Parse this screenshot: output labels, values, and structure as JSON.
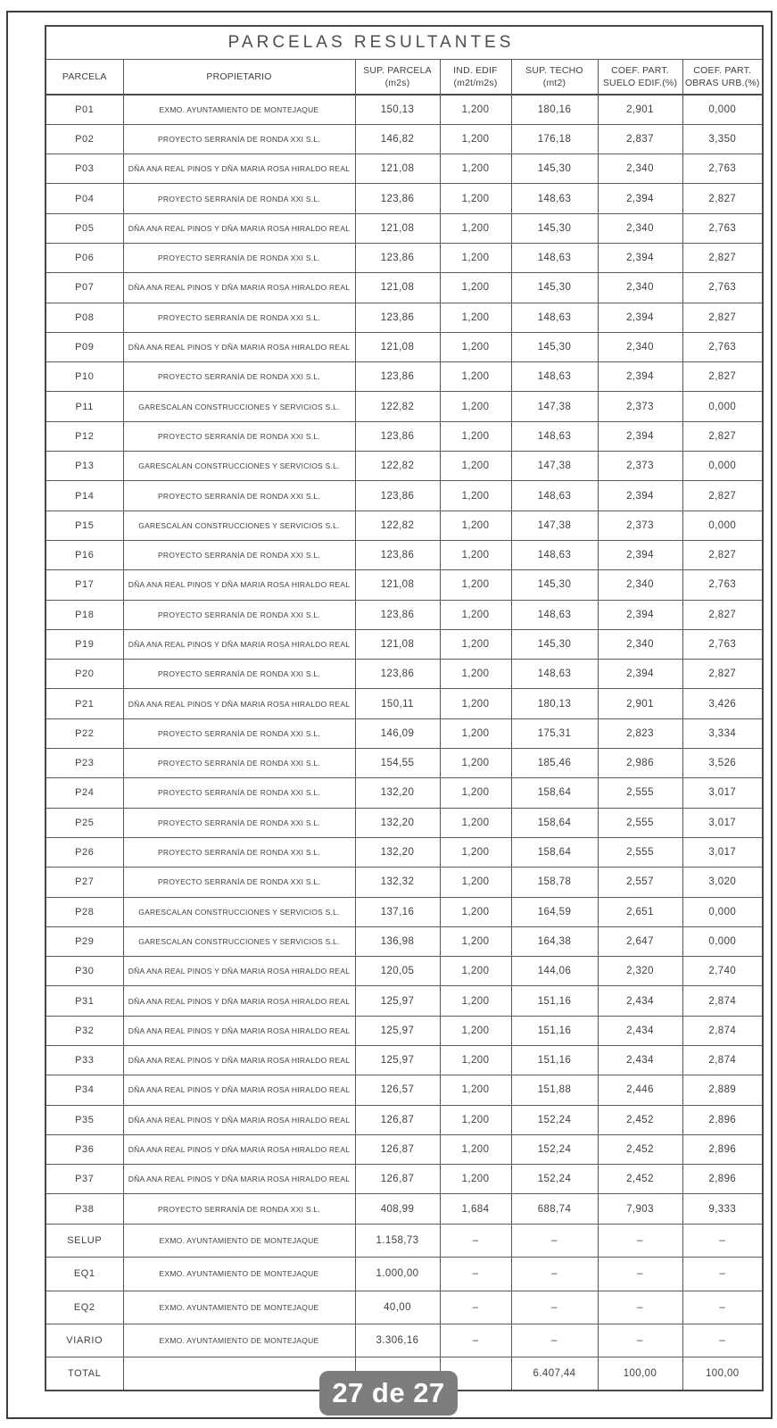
{
  "document": {
    "title": "PARCELAS RESULTANTES"
  },
  "page_indicator": {
    "label": "27 de 27",
    "bg_color": "#7d7d7d",
    "text_color": "#ffffff"
  },
  "colors": {
    "grid_line": "#5a5a5a",
    "frame": "#3d3d3d",
    "text": "#3f3f3f"
  },
  "table": {
    "headers": [
      {
        "line1": "PARCELA",
        "line2": ""
      },
      {
        "line1": "PROPIETARIO",
        "line2": ""
      },
      {
        "line1": "SUP. PARCELA",
        "line2": "(m2s)"
      },
      {
        "line1": "IND. EDIF",
        "line2": "(m2t/m2s)"
      },
      {
        "line1": "SUP. TECHO",
        "line2": "(mt2)"
      },
      {
        "line1": "COEF. PART.",
        "line2": "SUELO EDIF.(%)"
      },
      {
        "line1": "COEF. PART.",
        "line2": "OBRAS URB.(%)"
      }
    ],
    "rows": [
      [
        "P01",
        "EXMO. AYUNTAMIENTO DE MONTEJAQUE",
        "150,13",
        "1,200",
        "180,16",
        "2,901",
        "0,000"
      ],
      [
        "P02",
        "PROYECTO SERRANÍA DE RONDA XXI S.L.",
        "146,82",
        "1,200",
        "176,18",
        "2,837",
        "3,350"
      ],
      [
        "P03",
        "DÑA ANA REAL PINOS Y DÑA MARIA ROSA HIRALDO REAL",
        "121,08",
        "1,200",
        "145,30",
        "2,340",
        "2,763"
      ],
      [
        "P04",
        "PROYECTO SERRANÍA DE RONDA XXI S.L.",
        "123,86",
        "1,200",
        "148,63",
        "2,394",
        "2,827"
      ],
      [
        "P05",
        "DÑA ANA REAL PINOS Y DÑA MARIA ROSA HIRALDO REAL",
        "121,08",
        "1,200",
        "145,30",
        "2,340",
        "2,763"
      ],
      [
        "P06",
        "PROYECTO SERRANÍA DE RONDA XXI S.L.",
        "123,86",
        "1,200",
        "148,63",
        "2,394",
        "2,827"
      ],
      [
        "P07",
        "DÑA ANA REAL PINOS Y DÑA MARIA ROSA HIRALDO REAL",
        "121,08",
        "1,200",
        "145,30",
        "2,340",
        "2,763"
      ],
      [
        "P08",
        "PROYECTO SERRANÍA DE RONDA XXI S.L.",
        "123,86",
        "1,200",
        "148,63",
        "2,394",
        "2,827"
      ],
      [
        "P09",
        "DÑA ANA REAL PINOS Y DÑA MARIA ROSA HIRALDO REAL",
        "121,08",
        "1,200",
        "145,30",
        "2,340",
        "2,763"
      ],
      [
        "P10",
        "PROYECTO SERRANÍA DE RONDA XXI S.L.",
        "123,86",
        "1,200",
        "148,63",
        "2,394",
        "2,827"
      ],
      [
        "P11",
        "GARESCALAN CONSTRUCCIONES Y SERVICIOS S.L.",
        "122,82",
        "1,200",
        "147,38",
        "2,373",
        "0,000"
      ],
      [
        "P12",
        "PROYECTO SERRANÍA DE RONDA XXI S.L.",
        "123,86",
        "1,200",
        "148,63",
        "2,394",
        "2,827"
      ],
      [
        "P13",
        "GARESCALAN CONSTRUCCIONES Y SERVICIOS S.L.",
        "122,82",
        "1,200",
        "147,38",
        "2,373",
        "0,000"
      ],
      [
        "P14",
        "PROYECTO SERRANÍA DE RONDA XXI S.L.",
        "123,86",
        "1,200",
        "148,63",
        "2,394",
        "2,827"
      ],
      [
        "P15",
        "GARESCALAN CONSTRUCCIONES Y SERVICIOS S.L.",
        "122,82",
        "1,200",
        "147,38",
        "2,373",
        "0,000"
      ],
      [
        "P16",
        "PROYECTO SERRANÍA DE RONDA XXI S.L.",
        "123,86",
        "1,200",
        "148,63",
        "2,394",
        "2,827"
      ],
      [
        "P17",
        "DÑA ANA REAL PINOS Y DÑA MARIA ROSA HIRALDO REAL",
        "121,08",
        "1,200",
        "145,30",
        "2,340",
        "2,763"
      ],
      [
        "P18",
        "PROYECTO SERRANÍA DE RONDA XXI S.L.",
        "123,86",
        "1,200",
        "148,63",
        "2,394",
        "2,827"
      ],
      [
        "P19",
        "DÑA ANA REAL PINOS Y DÑA MARIA ROSA HIRALDO REAL",
        "121,08",
        "1,200",
        "145,30",
        "2,340",
        "2,763"
      ],
      [
        "P20",
        "PROYECTO SERRANÍA DE RONDA XXI S.L.",
        "123,86",
        "1,200",
        "148,63",
        "2,394",
        "2,827"
      ],
      [
        "P21",
        "DÑA ANA REAL PINOS Y DÑA MARIA ROSA HIRALDO REAL",
        "150,11",
        "1,200",
        "180,13",
        "2,901",
        "3,426"
      ],
      [
        "P22",
        "PROYECTO SERRANÍA DE RONDA XXI S.L.",
        "146,09",
        "1,200",
        "175,31",
        "2,823",
        "3,334"
      ],
      [
        "P23",
        "PROYECTO SERRANÍA DE RONDA XXI S.L.",
        "154,55",
        "1,200",
        "185,46",
        "2,986",
        "3,526"
      ],
      [
        "P24",
        "PROYECTO SERRANÍA DE RONDA XXI S.L.",
        "132,20",
        "1,200",
        "158,64",
        "2,555",
        "3,017"
      ],
      [
        "P25",
        "PROYECTO SERRANÍA DE RONDA XXI S.L.",
        "132,20",
        "1,200",
        "158,64",
        "2,555",
        "3,017"
      ],
      [
        "P26",
        "PROYECTO SERRANÍA DE RONDA XXI S.L.",
        "132,20",
        "1,200",
        "158,64",
        "2,555",
        "3,017"
      ],
      [
        "P27",
        "PROYECTO SERRANÍA DE RONDA XXI S.L.",
        "132,32",
        "1,200",
        "158,78",
        "2,557",
        "3,020"
      ],
      [
        "P28",
        "GARESCALAN CONSTRUCCIONES Y SERVICIOS S.L.",
        "137,16",
        "1,200",
        "164,59",
        "2,651",
        "0,000"
      ],
      [
        "P29",
        "GARESCALAN CONSTRUCCIONES Y SERVICIOS S.L.",
        "136,98",
        "1,200",
        "164,38",
        "2,647",
        "0,000"
      ],
      [
        "P30",
        "DÑA ANA REAL PINOS Y DÑA MARIA ROSA HIRALDO REAL",
        "120,05",
        "1,200",
        "144,06",
        "2,320",
        "2,740"
      ],
      [
        "P31",
        "DÑA ANA REAL PINOS Y DÑA MARIA ROSA HIRALDO REAL",
        "125,97",
        "1,200",
        "151,16",
        "2,434",
        "2,874"
      ],
      [
        "P32",
        "DÑA ANA REAL PINOS Y DÑA MARIA ROSA HIRALDO REAL",
        "125,97",
        "1,200",
        "151,16",
        "2,434",
        "2,874"
      ],
      [
        "P33",
        "DÑA ANA REAL PINOS Y DÑA MARIA ROSA HIRALDO REAL",
        "125,97",
        "1,200",
        "151,16",
        "2,434",
        "2,874"
      ],
      [
        "P34",
        "DÑA ANA REAL PINOS Y DÑA MARIA ROSA HIRALDO REAL",
        "126,57",
        "1,200",
        "151,88",
        "2,446",
        "2,889"
      ],
      [
        "P35",
        "DÑA ANA REAL PINOS Y DÑA MARIA ROSA HIRALDO REAL",
        "126,87",
        "1,200",
        "152,24",
        "2,452",
        "2,896"
      ],
      [
        "P36",
        "DÑA ANA REAL PINOS Y DÑA MARIA ROSA HIRALDO REAL",
        "126,87",
        "1,200",
        "152,24",
        "2,452",
        "2,896"
      ],
      [
        "P37",
        "DÑA ANA REAL PINOS Y DÑA MARIA ROSA HIRALDO REAL",
        "126,87",
        "1,200",
        "152,24",
        "2,452",
        "2,896"
      ],
      [
        "P38",
        "PROYECTO SERRANÍA DE RONDA XXI S.L.",
        "408,99",
        "1,684",
        "688,74",
        "7,903",
        "9,333"
      ]
    ],
    "footer_rows": [
      [
        "SELUP",
        "EXMO. AYUNTAMIENTO DE MONTEJAQUE",
        "1.158,73",
        "–",
        "–",
        "–",
        "–"
      ],
      [
        "EQ1",
        "EXMO. AYUNTAMIENTO DE MONTEJAQUE",
        "1.000,00",
        "–",
        "–",
        "–",
        "–"
      ],
      [
        "EQ2",
        "EXMO. AYUNTAMIENTO DE MONTEJAQUE",
        "40,00",
        "–",
        "–",
        "–",
        "–"
      ],
      [
        "VIARIO",
        "EXMO. AYUNTAMIENTO DE MONTEJAQUE",
        "3.306,16",
        "–",
        "–",
        "–",
        "–"
      ],
      [
        "TOTAL",
        "",
        "",
        "",
        "6.407,44",
        "100,00",
        "100,00"
      ]
    ]
  }
}
